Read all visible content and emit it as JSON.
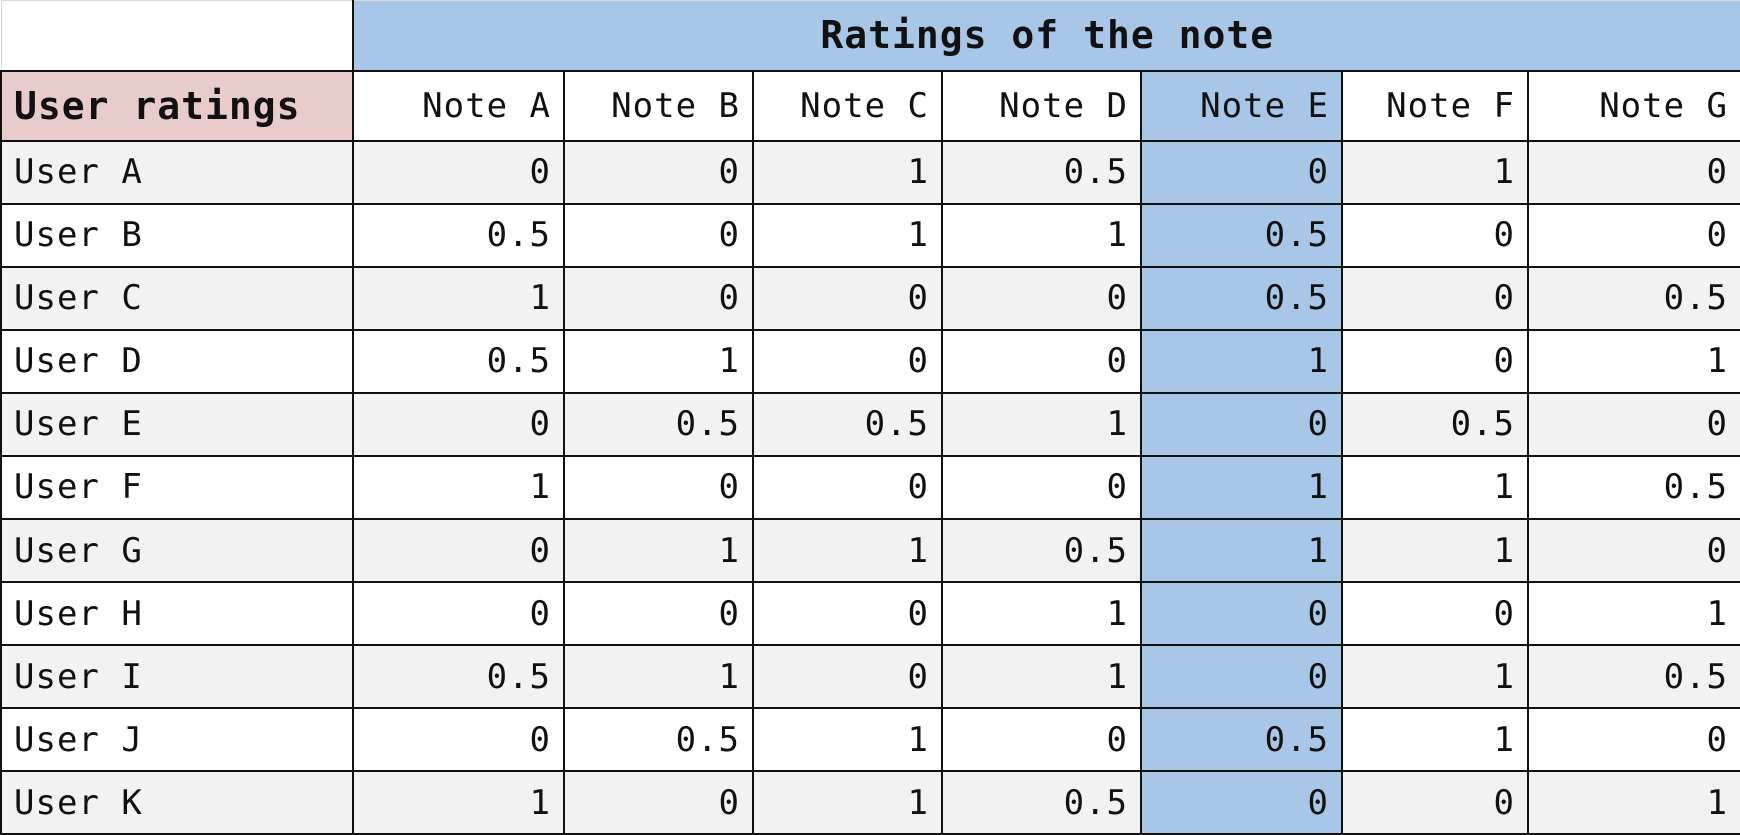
{
  "table": {
    "group_header": "Ratings of the note",
    "row_header_title": "User ratings",
    "highlight_column_index": 4,
    "colors": {
      "group_header_bg": "#a8c6e8",
      "row_header_title_bg": "#e8cbcb",
      "highlight_col_bg": "#a8c6e8",
      "zebra_bg": "#f2f2f2"
    },
    "columns": [
      "Note A",
      "Note B",
      "Note C",
      "Note D",
      "Note E",
      "Note F",
      "Note G"
    ],
    "rows": [
      {
        "label": "User A",
        "values": [
          "0",
          "0",
          "1",
          "0.5",
          "0",
          "1",
          "0"
        ]
      },
      {
        "label": "User B",
        "values": [
          "0.5",
          "0",
          "1",
          "1",
          "0.5",
          "0",
          "0"
        ]
      },
      {
        "label": "User C",
        "values": [
          "1",
          "0",
          "0",
          "0",
          "0.5",
          "0",
          "0.5"
        ]
      },
      {
        "label": "User D",
        "values": [
          "0.5",
          "1",
          "0",
          "0",
          "1",
          "0",
          "1"
        ]
      },
      {
        "label": "User E",
        "values": [
          "0",
          "0.5",
          "0.5",
          "1",
          "0",
          "0.5",
          "0"
        ]
      },
      {
        "label": "User F",
        "values": [
          "1",
          "0",
          "0",
          "0",
          "1",
          "1",
          "0.5"
        ]
      },
      {
        "label": "User G",
        "values": [
          "0",
          "1",
          "1",
          "0.5",
          "1",
          "1",
          "0"
        ]
      },
      {
        "label": "User H",
        "values": [
          "0",
          "0",
          "0",
          "1",
          "0",
          "0",
          "1"
        ]
      },
      {
        "label": "User I",
        "values": [
          "0.5",
          "1",
          "0",
          "1",
          "0",
          "1",
          "0.5"
        ]
      },
      {
        "label": "User J",
        "values": [
          "0",
          "0.5",
          "1",
          "0",
          "0.5",
          "1",
          "0"
        ]
      },
      {
        "label": "User K",
        "values": [
          "1",
          "0",
          "1",
          "0.5",
          "0",
          "0",
          "1"
        ]
      }
    ]
  }
}
